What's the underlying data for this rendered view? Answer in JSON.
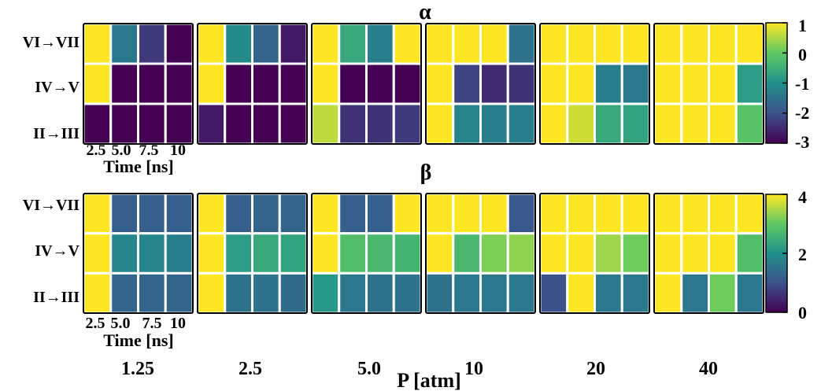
{
  "chart_data": [
    {
      "type": "heatmap",
      "title": "α",
      "rows": [
        "VI→VII",
        "IV→V",
        "II→III"
      ],
      "x_tick_labels": [
        "2.5",
        "5.0",
        "7.5",
        "10"
      ],
      "xlabel": "Time [ns]",
      "panel_labels": [
        "1.25",
        "2.5",
        "5.0",
        "10",
        "20",
        "40"
      ],
      "colorbar": {
        "min": -3,
        "max": 1,
        "ticks": [
          "1",
          "0",
          "-1",
          "-2",
          "-3"
        ],
        "colormap": "viridis"
      },
      "values": [
        [
          [
            1,
            -1.4,
            -2.3,
            -3
          ],
          [
            1,
            -3,
            -3,
            -3
          ],
          [
            -3,
            -3,
            -3,
            -3
          ]
        ],
        [
          [
            1,
            -1.1,
            -1.7,
            -2.7
          ],
          [
            1,
            -3,
            -3,
            -3
          ],
          [
            -2.7,
            -3,
            -3,
            -3
          ]
        ],
        [
          [
            1,
            -0.6,
            -1.3,
            1
          ],
          [
            1,
            -3,
            -3,
            -3
          ],
          [
            0.6,
            -2.4,
            -2.4,
            -2.3
          ]
        ],
        [
          [
            1,
            1,
            1,
            -1.5
          ],
          [
            1,
            -2.2,
            -2.5,
            -2.4
          ],
          [
            1,
            -1.2,
            -1.3,
            -1.3
          ]
        ],
        [
          [
            1,
            1,
            1,
            1
          ],
          [
            1,
            1,
            -1.3,
            -1.4
          ],
          [
            1,
            0.7,
            -0.6,
            -0.7
          ]
        ],
        [
          [
            1,
            1,
            1,
            1
          ],
          [
            1,
            1,
            1,
            -0.8
          ],
          [
            1,
            1,
            1,
            -0.1
          ]
        ]
      ]
    },
    {
      "type": "heatmap",
      "title": "β",
      "rows": [
        "VI→VII",
        "IV→V",
        "II→III"
      ],
      "x_tick_labels": [
        "2.5",
        "5.0",
        "7.5",
        "10"
      ],
      "xlabel": "Time [ns]",
      "panel_labels": [
        "1.25",
        "2.5",
        "5.0",
        "10",
        "20",
        "40"
      ],
      "panel_axis_label": "P [atm]",
      "colorbar": {
        "min": 0,
        "max": 4,
        "ticks": [
          "4",
          "2",
          "0"
        ],
        "colormap": "viridis"
      },
      "values": [
        [
          [
            4,
            1.2,
            1.2,
            1.2
          ],
          [
            4,
            1.8,
            1.8,
            1.7
          ],
          [
            4,
            1.3,
            1.3,
            1.3
          ]
        ],
        [
          [
            4,
            1.2,
            1.3,
            1.3
          ],
          [
            4,
            2.2,
            2.4,
            2.3
          ],
          [
            4,
            1.5,
            1.5,
            1.4
          ]
        ],
        [
          [
            4,
            1.2,
            1.2,
            4
          ],
          [
            4,
            2.8,
            2.7,
            2.6
          ],
          [
            2.1,
            1.6,
            1.5,
            1.5
          ]
        ],
        [
          [
            4,
            4,
            4,
            1.1
          ],
          [
            4,
            2.7,
            3.2,
            3.3
          ],
          [
            1.5,
            1.6,
            1.6,
            1.6
          ]
        ],
        [
          [
            4,
            4,
            4,
            4
          ],
          [
            4,
            4,
            3.4,
            3.1
          ],
          [
            1.0,
            4,
            1.6,
            1.6
          ]
        ],
        [
          [
            4,
            4,
            4,
            4
          ],
          [
            4,
            4,
            4,
            2.8
          ],
          [
            4,
            1.6,
            3.1,
            1.6
          ]
        ]
      ]
    }
  ]
}
